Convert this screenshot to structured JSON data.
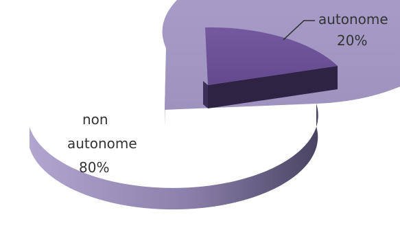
{
  "chart_data": {
    "type": "pie",
    "style": "3d-exploded",
    "slices": [
      {
        "label_lines": [
          "autonome",
          "20%"
        ],
        "value": 20,
        "color": "#6a5196",
        "color_dark": "#2e2342"
      },
      {
        "label_lines": [
          "non",
          "autonome",
          "80%"
        ],
        "value": 80,
        "color": "#a094c1",
        "color_dark": "#5e5679"
      }
    ],
    "legend": "none"
  }
}
